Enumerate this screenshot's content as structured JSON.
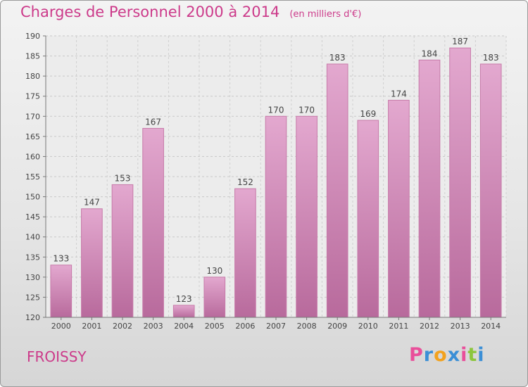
{
  "chart_data": {
    "type": "bar",
    "title": "Charges de Personnel 2000 à 2014",
    "subtitle": "(en milliers d'€)",
    "categories": [
      "2000",
      "2001",
      "2002",
      "2003",
      "2004",
      "2005",
      "2006",
      "2007",
      "2008",
      "2009",
      "2010",
      "2011",
      "2012",
      "2013",
      "2014"
    ],
    "values": [
      133,
      147,
      153,
      167,
      123,
      130,
      152,
      170,
      170,
      183,
      169,
      174,
      184,
      187,
      183
    ],
    "ylim": [
      120,
      190
    ],
    "yticks": [
      "120",
      "125",
      "130",
      "135",
      "140",
      "145",
      "150",
      "155",
      "160",
      "165",
      "170",
      "175",
      "180",
      "185",
      "190"
    ],
    "grid": true,
    "bar_color": "#d48ab8",
    "xlabel": "",
    "ylabel": ""
  },
  "footer": {
    "commune": "FROISSY",
    "brand": [
      "P",
      "r",
      "o",
      "x",
      "i",
      "t",
      "i"
    ],
    "brand_colors": [
      "#e94f9a",
      "#3b8fd6",
      "#f2a21e",
      "#3b8fd6",
      "#e94f9a",
      "#8cc63e",
      "#3b8fd6"
    ]
  }
}
